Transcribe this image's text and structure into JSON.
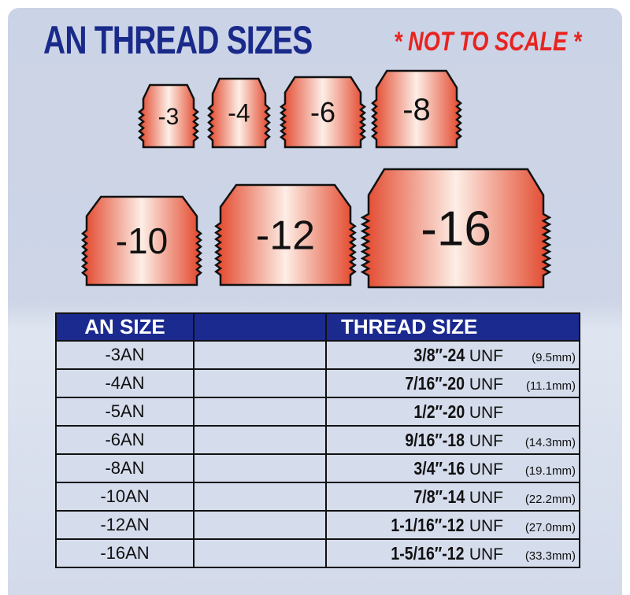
{
  "title": "AN THREAD SIZES",
  "subtitle": "* NOT TO SCALE *",
  "fittings": [
    "-3",
    "-4",
    "-6",
    "-8",
    "-10",
    "-12",
    "-16"
  ],
  "colors": {
    "title": "#1a2a8a",
    "subtitle": "#e8231f",
    "header": "#1b2a8f",
    "fitting_edge": "#e2452a",
    "fitting_center": "#fdeee6"
  },
  "table": {
    "headers": [
      "AN SIZE",
      "",
      "THREAD SIZE"
    ],
    "rows": [
      {
        "an": "-3AN",
        "thread": "3/8″-24",
        "unf": "UNF",
        "mm": "(9.5mm)"
      },
      {
        "an": "-4AN",
        "thread": "7/16″-20",
        "unf": "UNF",
        "mm": "(11.1mm)"
      },
      {
        "an": "-5AN",
        "thread": "1/2″-20",
        "unf": "UNF",
        "mm": ""
      },
      {
        "an": "-6AN",
        "thread": "9/16″-18",
        "unf": "UNF",
        "mm": "(14.3mm)"
      },
      {
        "an": "-8AN",
        "thread": "3/4″-16",
        "unf": "UNF",
        "mm": "(19.1mm)"
      },
      {
        "an": "-10AN",
        "thread": "7/8″-14",
        "unf": "UNF",
        "mm": "(22.2mm)"
      },
      {
        "an": "-12AN",
        "thread": "1-1/16″-12",
        "unf": "UNF",
        "mm": "(27.0mm)"
      },
      {
        "an": "-16AN",
        "thread": "1-5/16″-12",
        "unf": "UNF",
        "mm": "(33.3mm)"
      }
    ]
  }
}
